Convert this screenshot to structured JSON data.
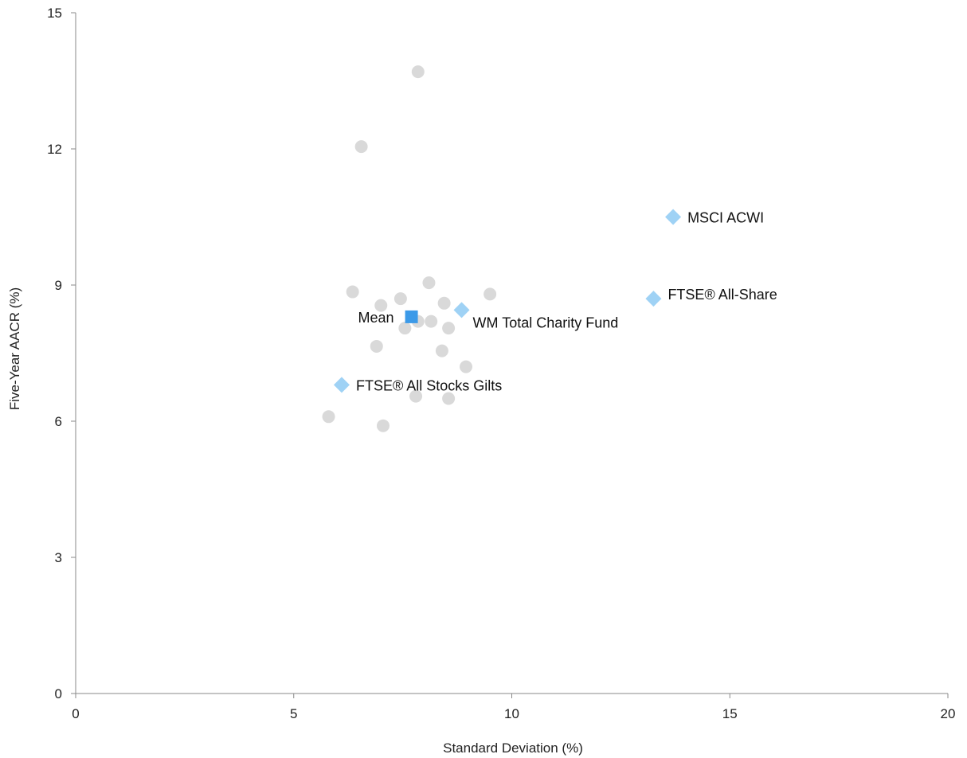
{
  "chart_data": {
    "type": "scatter",
    "title": "",
    "xlabel": "Standard Deviation (%)",
    "ylabel": "Five-Year AACR (%)",
    "xlim": [
      0,
      20
    ],
    "ylim": [
      0,
      15
    ],
    "x_ticks": [
      0,
      5,
      10,
      15,
      20
    ],
    "y_ticks": [
      0,
      3,
      6,
      9,
      12,
      15
    ],
    "grid": false,
    "legend": "none",
    "series": [
      {
        "kind": "funds",
        "marker": "circle",
        "color": "#d9d9d9",
        "points": [
          {
            "x": 7.85,
            "y": 13.7
          },
          {
            "x": 6.55,
            "y": 12.05
          },
          {
            "x": 6.35,
            "y": 8.85
          },
          {
            "x": 8.1,
            "y": 9.05
          },
          {
            "x": 7.45,
            "y": 8.7
          },
          {
            "x": 9.5,
            "y": 8.8
          },
          {
            "x": 8.45,
            "y": 8.6
          },
          {
            "x": 7.0,
            "y": 8.55
          },
          {
            "x": 7.85,
            "y": 8.2
          },
          {
            "x": 8.15,
            "y": 8.2
          },
          {
            "x": 7.55,
            "y": 8.05
          },
          {
            "x": 8.55,
            "y": 8.05
          },
          {
            "x": 6.9,
            "y": 7.65
          },
          {
            "x": 8.4,
            "y": 7.55
          },
          {
            "x": 8.95,
            "y": 7.2
          },
          {
            "x": 7.8,
            "y": 6.55
          },
          {
            "x": 8.55,
            "y": 6.5
          },
          {
            "x": 5.8,
            "y": 6.1
          },
          {
            "x": 7.05,
            "y": 5.9
          }
        ]
      },
      {
        "kind": "mean",
        "marker": "square",
        "color": "#3c9ae8",
        "points": [
          {
            "x": 7.7,
            "y": 8.3,
            "label": "Mean",
            "label_side": "left"
          }
        ]
      },
      {
        "kind": "indices",
        "marker": "diamond",
        "color": "#9fd2f5",
        "points": [
          {
            "x": 13.7,
            "y": 10.5,
            "label": "MSCI ACWI",
            "label_side": "right"
          },
          {
            "x": 13.25,
            "y": 8.7,
            "label": "FTSE® All-Share",
            "label_side": "upper-right"
          },
          {
            "x": 8.85,
            "y": 8.45,
            "label": "WM Total Charity Fund",
            "label_side": "lower-right"
          },
          {
            "x": 6.1,
            "y": 6.8,
            "label": "FTSE® All Stocks Gilts",
            "label_side": "right"
          }
        ]
      }
    ]
  }
}
